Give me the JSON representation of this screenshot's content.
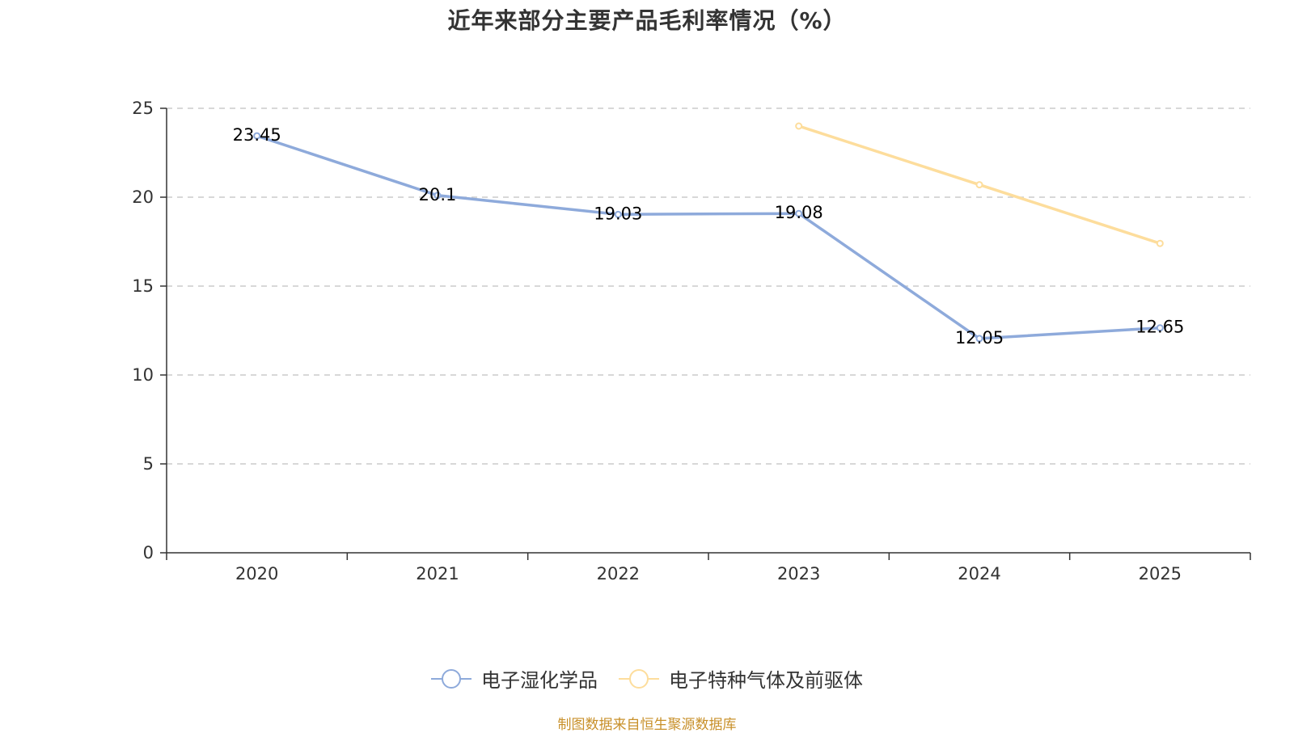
{
  "chart_data": {
    "type": "line",
    "title": "近年来部分主要产品毛利率情况（%）",
    "categories": [
      "2020",
      "2021",
      "2022",
      "2023",
      "2024",
      "2025"
    ],
    "ylim": [
      0,
      25
    ],
    "yticks": [
      0,
      5,
      10,
      15,
      20,
      25
    ],
    "xlabel": "",
    "ylabel": "",
    "grid": true,
    "legend_position": "bottom-center",
    "series": [
      {
        "name": "电子湿化学品",
        "color": "#8eaadb",
        "values": [
          23.45,
          20.1,
          19.03,
          19.08,
          12.05,
          12.65
        ],
        "labels": [
          "23.45",
          "20.1",
          "19.03",
          "19.08",
          "12.05",
          "12.65"
        ],
        "show_labels": true
      },
      {
        "name": "电子特种气体及前驱体",
        "color": "#fddd9c",
        "values": [
          null,
          null,
          null,
          24.0,
          20.7,
          17.4
        ],
        "labels": [],
        "show_labels": false
      }
    ],
    "source": "制图数据来自恒生聚源数据库"
  }
}
